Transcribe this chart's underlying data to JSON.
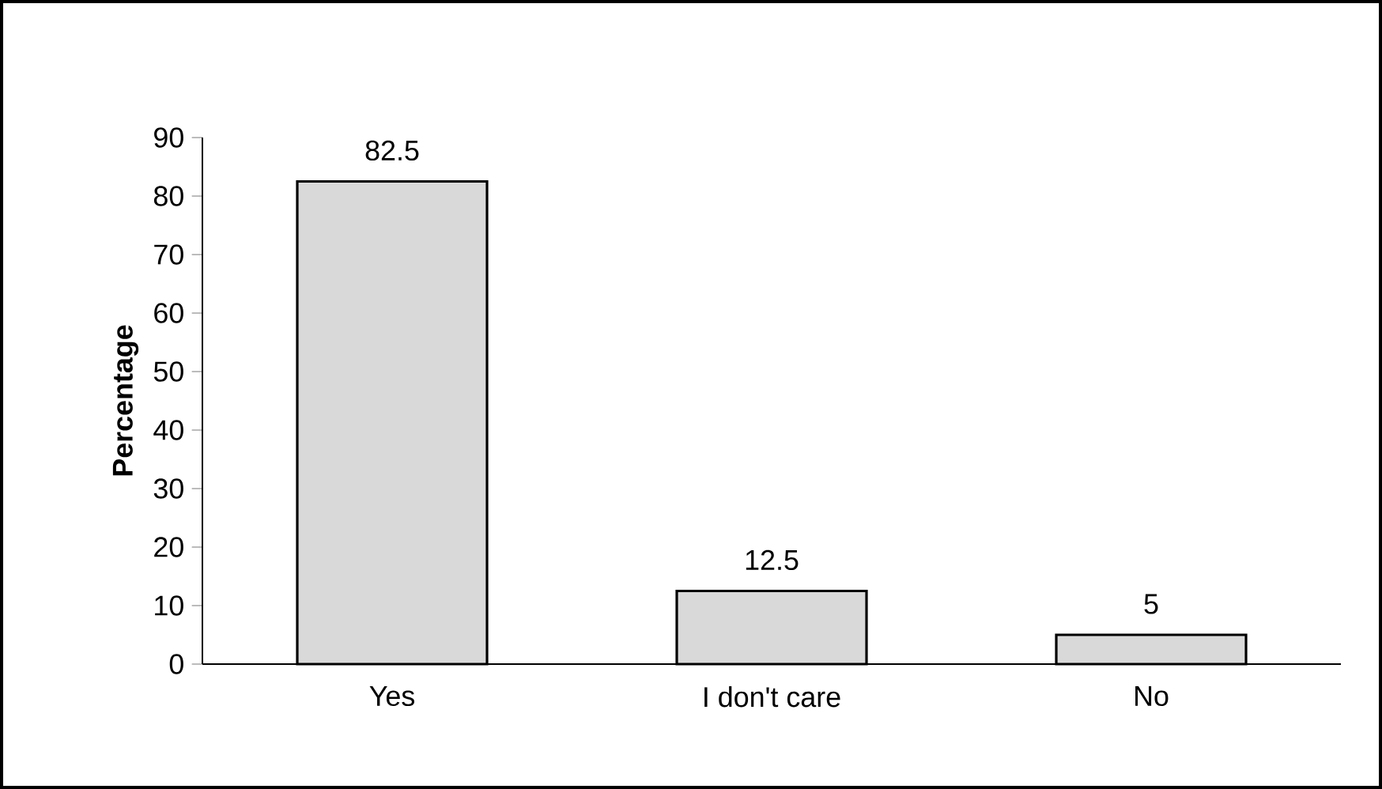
{
  "chart_data": {
    "type": "bar",
    "ylabel": "Percentage",
    "categories": [
      "Yes",
      "I don't care",
      "No"
    ],
    "values": [
      82.5,
      12.5,
      5
    ],
    "color": "#d9d9d9",
    "ylim": [
      0,
      90
    ],
    "yticks": [
      0,
      10,
      20,
      30,
      40,
      50,
      60,
      70,
      80,
      90
    ],
    "data_labels": true,
    "grid": false
  }
}
